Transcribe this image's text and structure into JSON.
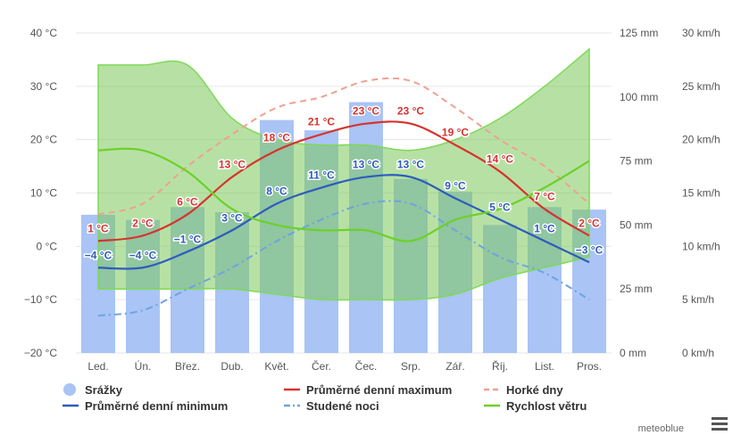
{
  "chart_data": {
    "type": "bar",
    "categories": [
      "Led.",
      "Ún.",
      "Břez.",
      "Dub.",
      "Květ.",
      "Čer.",
      "Čec.",
      "Srp.",
      "Zář.",
      "Říj.",
      "List.",
      "Pros."
    ],
    "y_temp_ticks": [
      "40 °C",
      "30 °C",
      "20 °C",
      "10 °C",
      "0 °C",
      "−10 °C",
      "−20 °C"
    ],
    "y_precip_ticks": [
      "125 mm",
      "100 mm",
      "75 mm",
      "50 mm",
      "25 mm",
      "0 mm"
    ],
    "y_wind_ticks": [
      "30 km/h",
      "25 km/h",
      "20 km/h",
      "15 km/h",
      "10 km/h",
      "5 km/h",
      "0 km/h"
    ],
    "ylim_temp": [
      -20,
      40
    ],
    "ylim_precip": [
      0,
      125
    ],
    "ylim_wind": [
      0,
      30
    ],
    "grid": true,
    "legend_position": "bottom",
    "series": [
      {
        "name": "Srážky",
        "kind": "bar",
        "axis": "precip",
        "color": "#a9c4f5",
        "values": [
          54,
          52,
          57,
          55,
          91,
          87,
          98,
          68,
          63,
          50,
          57,
          56
        ]
      },
      {
        "name": "Průměrné denní maximum",
        "kind": "line",
        "axis": "temp",
        "color": "#d7332f",
        "values": [
          1,
          2,
          6,
          13,
          18,
          21,
          23,
          23,
          19,
          14,
          7,
          2
        ],
        "labels": [
          "1 °C",
          "2 °C",
          "6 °C",
          "13 °C",
          "18 °C",
          "21 °C",
          "23 °C",
          "23 °C",
          "19 °C",
          "14 °C",
          "7 °C",
          "2 °C"
        ]
      },
      {
        "name": "Horké dny",
        "kind": "dashed",
        "axis": "temp",
        "color": "#f0a090",
        "values": [
          6,
          8,
          15,
          21,
          26,
          28,
          31,
          31,
          26,
          20,
          15,
          8
        ]
      },
      {
        "name": "Průměrné denní minimum",
        "kind": "line",
        "axis": "temp",
        "color": "#2e5bbd",
        "values": [
          -4,
          -4,
          -1,
          3,
          8,
          11,
          13,
          13,
          9,
          5,
          1,
          -3
        ],
        "labels": [
          "−4 °C",
          "−4 °C",
          "−1 °C",
          "3 °C",
          "8 °C",
          "11 °C",
          "13 °C",
          "13 °C",
          "9 °C",
          "5 °C",
          "1 °C",
          "−3 °C"
        ]
      },
      {
        "name": "Studené noci",
        "kind": "dashdot",
        "axis": "temp",
        "color": "#6fa3e0",
        "values": [
          -13,
          -12,
          -8,
          -4,
          1,
          5,
          8,
          8,
          3,
          -2,
          -5,
          -10
        ]
      },
      {
        "name": "Rychlost větru",
        "kind": "line",
        "axis": "wind",
        "color": "#6cd12a",
        "values": [
          19,
          19,
          17,
          13.5,
          12,
          11.5,
          11.5,
          10.5,
          12.5,
          13.5,
          15.5,
          18
        ]
      },
      {
        "name": "wind_range",
        "kind": "band",
        "axis": "wind",
        "color": "#7cc95a",
        "upper": [
          27,
          27,
          27,
          22,
          20,
          19.5,
          19.5,
          19,
          20,
          22,
          25,
          28.5
        ],
        "lower": [
          6,
          6,
          6,
          6,
          5.5,
          5,
          5,
          5,
          5.5,
          7,
          8,
          9
        ]
      }
    ]
  },
  "legend": [
    {
      "label": "Srážky",
      "symbol": "circle",
      "color": "#a9c4f5"
    },
    {
      "label": "Průměrné denní maximum",
      "symbol": "line",
      "color": "#d7332f"
    },
    {
      "label": "Horké dny",
      "symbol": "dash",
      "color": "#f0a090"
    },
    {
      "label": "Průměrné denní minimum",
      "symbol": "line",
      "color": "#2e5bbd"
    },
    {
      "label": "Studené noci",
      "symbol": "dashdot",
      "color": "#6fa3e0"
    },
    {
      "label": "Rychlost větru",
      "symbol": "line",
      "color": "#6cd12a"
    }
  ],
  "credit": "meteoblue",
  "menu_icon": "hamburger-menu-icon"
}
